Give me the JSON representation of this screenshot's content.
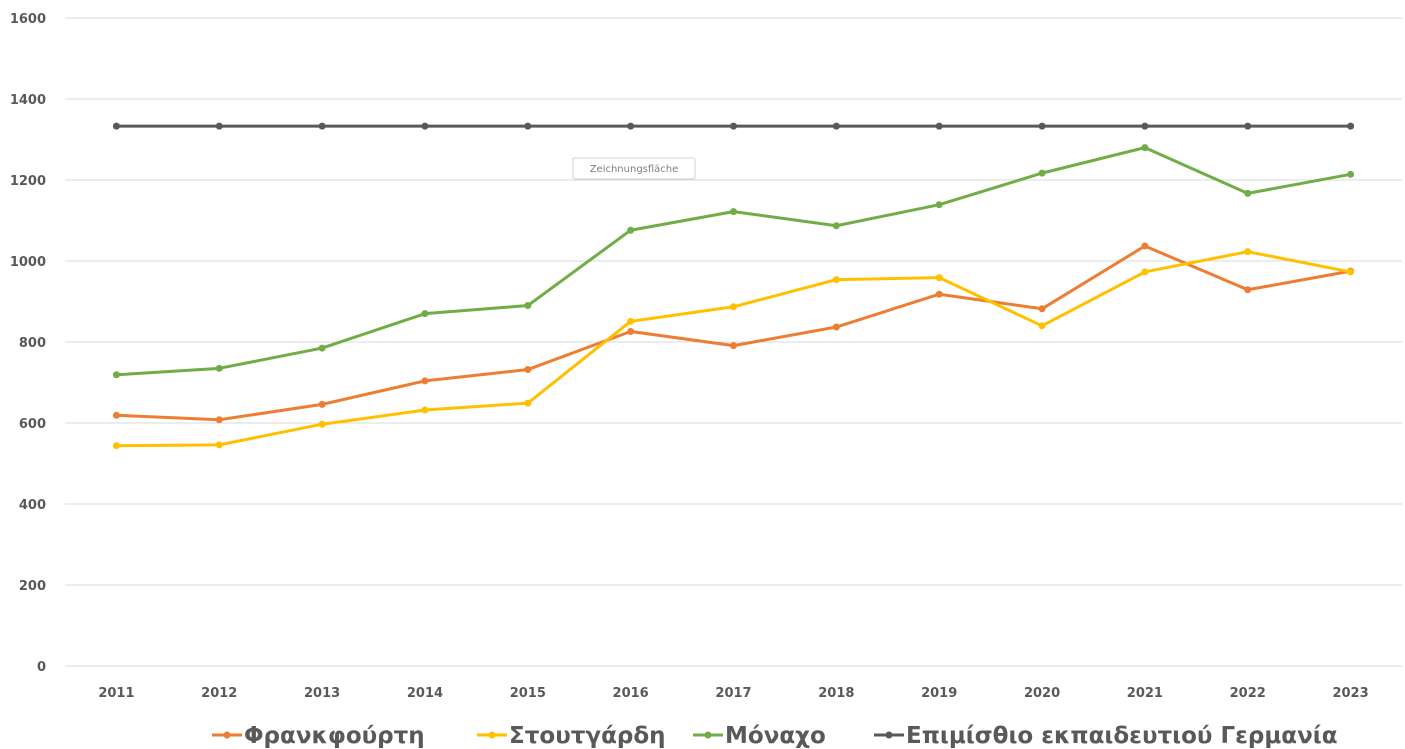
{
  "chart_data": {
    "type": "line",
    "categories": [
      "2011",
      "2012",
      "2013",
      "2014",
      "2015",
      "2016",
      "2017",
      "2018",
      "2019",
      "2020",
      "2021",
      "2022",
      "2023"
    ],
    "ylim": [
      0,
      1600
    ],
    "yticks": [
      0,
      200,
      400,
      600,
      800,
      1000,
      1200,
      1400,
      1600
    ],
    "grid": true,
    "legend_position": "bottom",
    "series": [
      {
        "name": "Φρανκφούρτη",
        "color": "#ED7D31",
        "values": [
          619,
          608,
          646,
          704,
          732,
          826,
          791,
          837,
          918,
          882,
          1037,
          929,
          975
        ]
      },
      {
        "name": "Στουτγάρδη",
        "color": "#FFC000",
        "values": [
          544,
          546,
          597,
          632,
          649,
          851,
          887,
          954,
          959,
          840,
          973,
          1023,
          973
        ]
      },
      {
        "name": "Μόναχο",
        "color": "#70AD47",
        "values": [
          719,
          735,
          785,
          870,
          890,
          1076,
          1122,
          1087,
          1139,
          1217,
          1280,
          1167,
          1214
        ]
      },
      {
        "name": "Επιμίσθιο εκπαιδευτιού Γερμανία",
        "color": "#595959",
        "values": [
          1333,
          1333,
          1333,
          1333,
          1333,
          1333,
          1333,
          1333,
          1333,
          1333,
          1333,
          1333,
          1333
        ]
      }
    ],
    "annotation": "Zeichnungsfläche"
  }
}
